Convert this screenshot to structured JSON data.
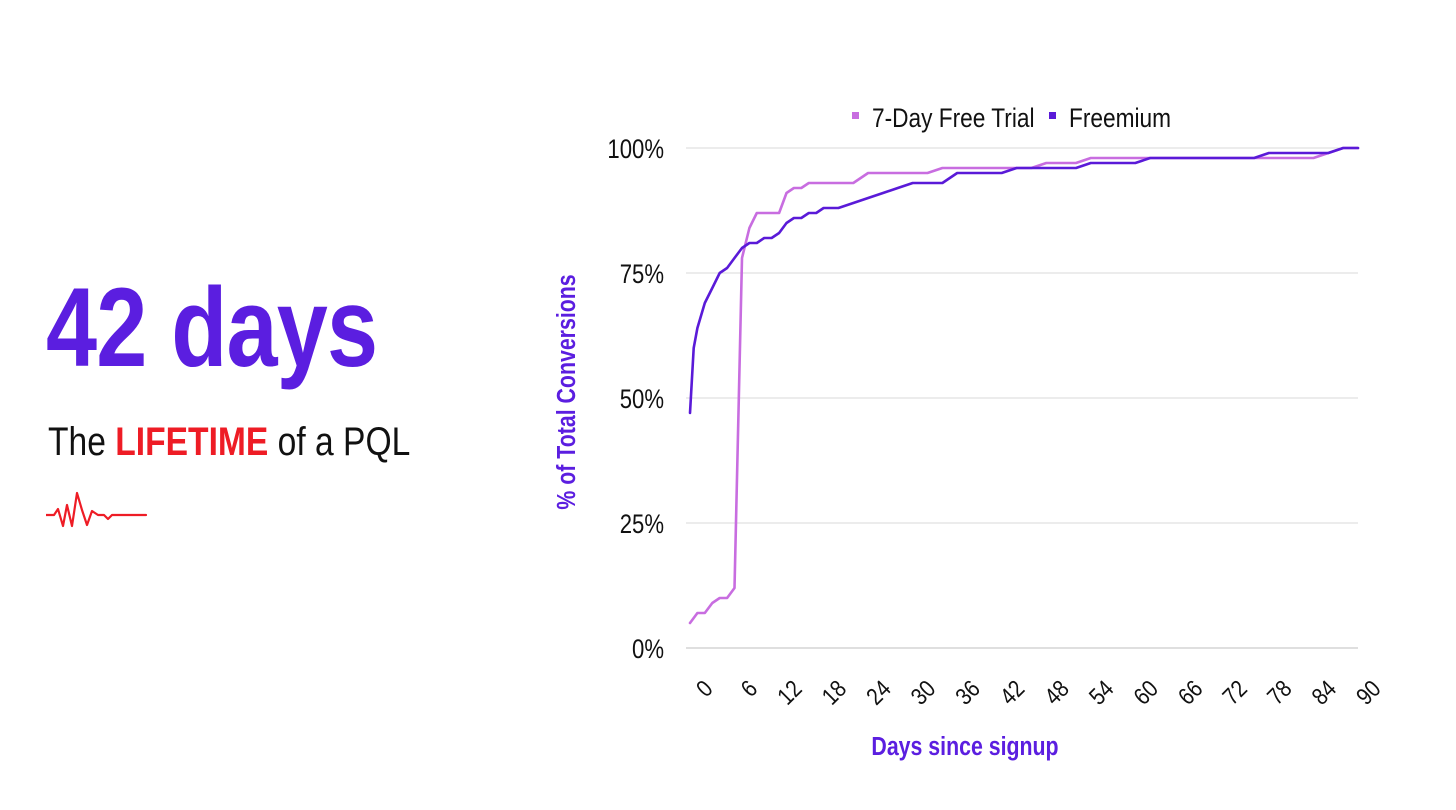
{
  "headline": {
    "value": "42 days"
  },
  "subline": {
    "prefix": "The",
    "emphasis": "LIFETIME",
    "suffix": "of a PQL"
  },
  "colors": {
    "brand": "#5b1ee0",
    "accent": "#ee1c25",
    "trial": "#c86de0",
    "freemium": "#5a1ad8",
    "grid": "#d9d9d9"
  },
  "icons": {
    "pulse": "heartbeat-line-icon"
  },
  "chart_data": {
    "type": "line",
    "title": "",
    "xlabel": "Days since signup",
    "ylabel": "% of Total Conversions",
    "xlim": [
      0,
      90
    ],
    "ylim": [
      0,
      100
    ],
    "x_ticks": [
      "0",
      "6",
      "12",
      "18",
      "24",
      "30",
      "36",
      "42",
      "48",
      "54",
      "60",
      "66",
      "72",
      "78",
      "84",
      "90"
    ],
    "y_ticks": [
      "0%",
      "25%",
      "50%",
      "75%",
      "100%"
    ],
    "grid": true,
    "legend_position": "top-center",
    "series": [
      {
        "name": "7-Day Free Trial",
        "color": "#c86de0",
        "x": [
          0,
          1,
          2,
          3,
          4,
          5,
          6,
          7,
          8,
          9,
          10,
          11,
          12,
          13,
          14,
          15,
          16,
          18,
          20,
          22,
          24,
          26,
          28,
          30,
          32,
          34,
          36,
          38,
          40,
          42,
          44,
          46,
          48,
          50,
          52,
          54,
          56,
          58,
          60,
          62,
          64,
          66,
          68,
          70,
          72,
          74,
          76,
          78,
          80,
          82,
          84,
          86,
          88,
          90
        ],
        "values": [
          5,
          7,
          7,
          9,
          10,
          10,
          12,
          78,
          84,
          87,
          87,
          87,
          87,
          91,
          92,
          92,
          93,
          93,
          93,
          93,
          95,
          95,
          95,
          95,
          95,
          96,
          96,
          96,
          96,
          96,
          96,
          96,
          97,
          97,
          97,
          98,
          98,
          98,
          98,
          98,
          98,
          98,
          98,
          98,
          98,
          98,
          98,
          98,
          98,
          98,
          98,
          99,
          100,
          100
        ]
      },
      {
        "name": "Freemium",
        "color": "#5a1ad8",
        "x": [
          0,
          0.5,
          1,
          2,
          3,
          4,
          5,
          6,
          7,
          8,
          9,
          10,
          11,
          12,
          13,
          14,
          15,
          16,
          17,
          18,
          20,
          22,
          24,
          26,
          28,
          30,
          32,
          34,
          36,
          38,
          40,
          42,
          44,
          46,
          48,
          50,
          52,
          54,
          56,
          58,
          60,
          62,
          64,
          66,
          68,
          70,
          72,
          74,
          76,
          78,
          80,
          82,
          84,
          86,
          88,
          90
        ],
        "values": [
          47,
          60,
          64,
          69,
          72,
          75,
          76,
          78,
          80,
          81,
          81,
          82,
          82,
          83,
          85,
          86,
          86,
          87,
          87,
          88,
          88,
          89,
          90,
          91,
          92,
          93,
          93,
          93,
          95,
          95,
          95,
          95,
          96,
          96,
          96,
          96,
          96,
          97,
          97,
          97,
          97,
          98,
          98,
          98,
          98,
          98,
          98,
          98,
          98,
          99,
          99,
          99,
          99,
          99,
          100,
          100
        ]
      }
    ]
  }
}
